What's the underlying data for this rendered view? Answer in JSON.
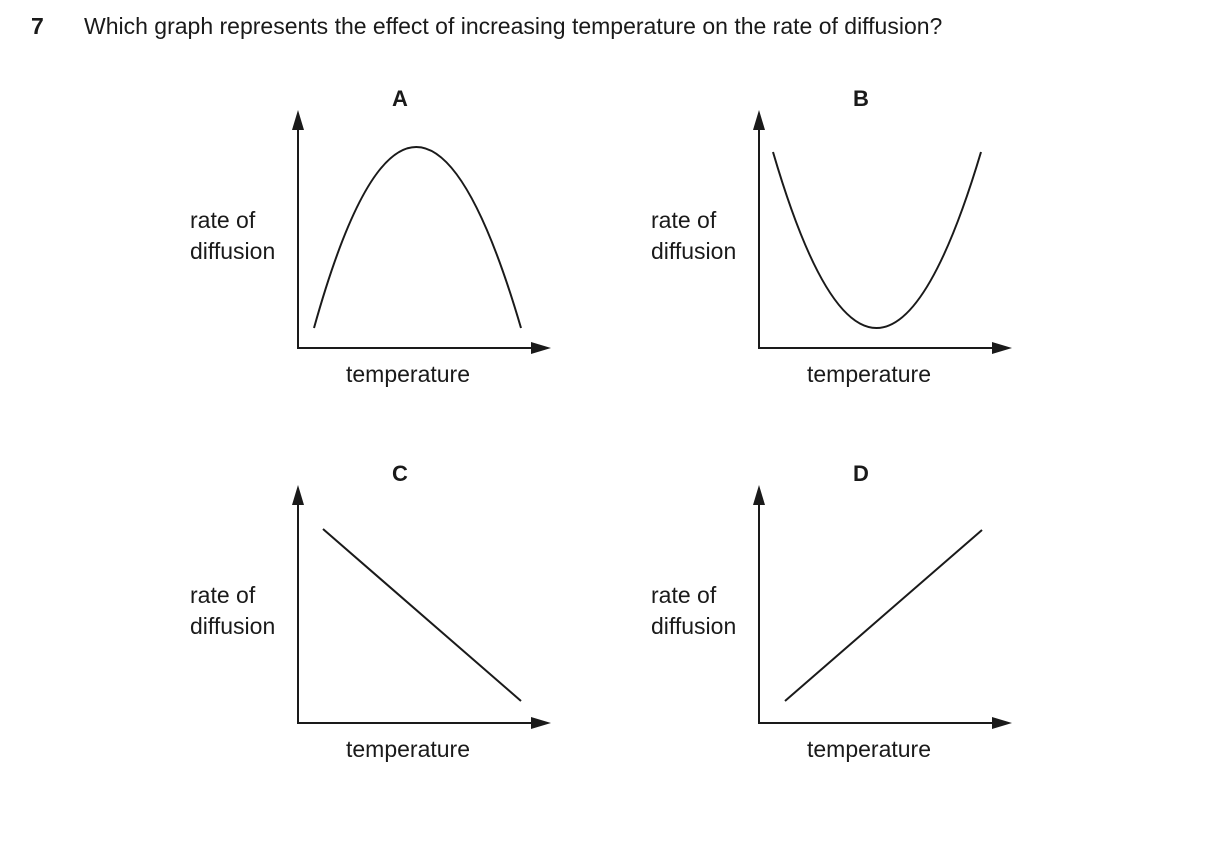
{
  "question": {
    "number": "7",
    "text": "Which graph represents the effect of increasing temperature on the rate of diffusion?"
  },
  "graphs": [
    {
      "letter": "A",
      "y_label_line1": "rate of",
      "y_label_line2": "diffusion",
      "x_label": "temperature",
      "shape": "rises then falls (peak in middle)"
    },
    {
      "letter": "B",
      "y_label_line1": "rate of",
      "y_label_line2": "diffusion",
      "x_label": "temperature",
      "shape": "falls then rises (minimum in middle)"
    },
    {
      "letter": "C",
      "y_label_line1": "rate of",
      "y_label_line2": "diffusion",
      "x_label": "temperature",
      "shape": "straight line decreasing"
    },
    {
      "letter": "D",
      "y_label_line1": "rate of",
      "y_label_line2": "diffusion",
      "x_label": "temperature",
      "shape": "straight line increasing"
    }
  ],
  "colors": {
    "ink": "#1a1a1a",
    "background": "#ffffff"
  }
}
